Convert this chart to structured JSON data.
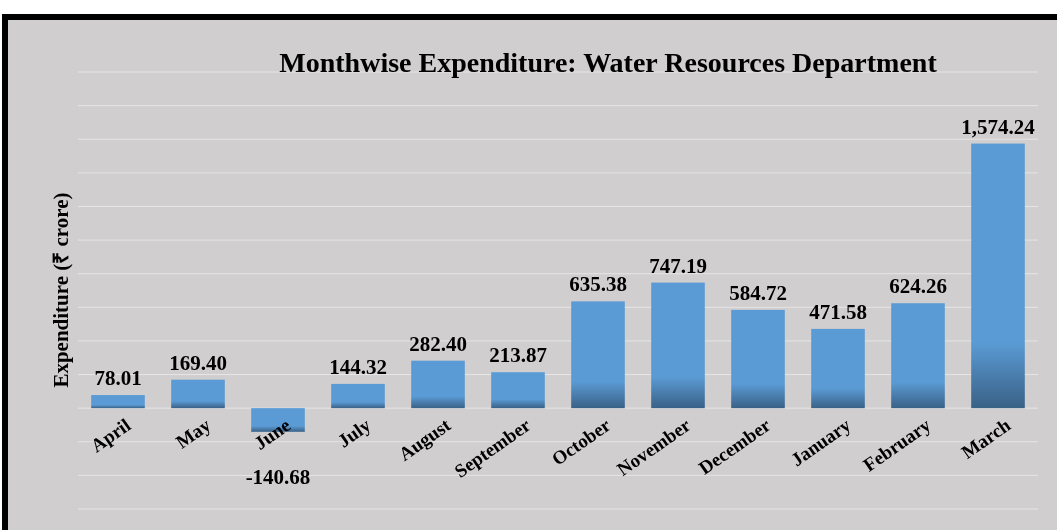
{
  "chart_data": {
    "type": "bar",
    "title": "Monthwise Expenditure: Water Resources  Department",
    "ylabel": "Expenditure (₹ crore)",
    "categories": [
      "April",
      "May",
      "June",
      "July",
      "August",
      "September",
      "October",
      "November",
      "December",
      "January",
      "February",
      "March"
    ],
    "values": [
      78.01,
      169.4,
      -140.68,
      144.32,
      282.4,
      213.87,
      635.38,
      747.19,
      584.72,
      471.58,
      624.26,
      1574.24
    ],
    "value_labels": [
      "78.01",
      "169.40",
      "-140.68",
      "144.32",
      "282.40",
      "213.87",
      "635.38",
      "747.19",
      "584.72",
      "471.58",
      "624.26",
      "1,574.24"
    ],
    "color": "#5b9bd5",
    "ylim": [
      -600,
      2000
    ],
    "yticks": [
      {
        "value": -600,
        "label": null
      },
      {
        "value": -400,
        "label": null
      },
      {
        "value": -200,
        "label": null
      },
      {
        "value": 0,
        "label": null
      },
      {
        "value": 200,
        "label": null
      },
      {
        "value": 400,
        "label": null
      },
      {
        "value": 600,
        "label": null
      },
      {
        "value": 800,
        "label": null
      },
      {
        "value": 1000,
        "label": null
      },
      {
        "value": 1200,
        "label": null
      },
      {
        "value": 1400,
        "label": null
      },
      {
        "value": 1600,
        "label": null
      },
      {
        "value": 1800,
        "label": null
      },
      {
        "value": 2000,
        "label": null
      }
    ],
    "grid": "y",
    "tick_labels": "x"
  }
}
